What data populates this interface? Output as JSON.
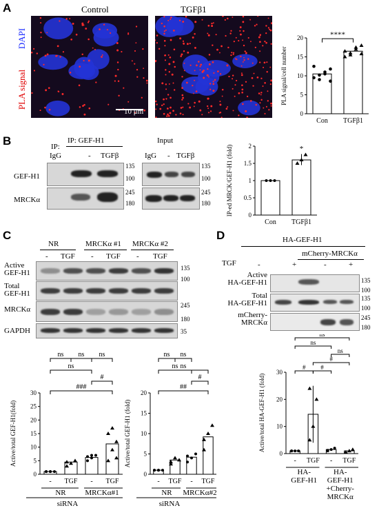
{
  "panelA": {
    "label": "A",
    "control_title": "Control",
    "tgf_title": "TGFβ1",
    "dapi_label": "DAPI",
    "pla_label": "PLA signal",
    "scale_bar": "10 μm",
    "chart": {
      "type": "bar",
      "categories": [
        "Con",
        "TGFβ1"
      ],
      "values": [
        10.5,
        16.5
      ],
      "ylabel": "PLA signal/cell number",
      "ylim": [
        0,
        20
      ],
      "yticks": [
        0,
        5,
        10,
        15,
        20
      ],
      "significance": "****"
    }
  },
  "panelB": {
    "label": "B",
    "ip_header": "IP: GEF-H1",
    "ip_prefix": "IP:",
    "input_header": "Input",
    "lanes_ip": [
      "IgG",
      "-",
      "TGFβ"
    ],
    "lanes_input": [
      "IgG",
      "-",
      "TGFβ"
    ],
    "rows": [
      "GEF-H1",
      "MRCKα"
    ],
    "mw_ip": [
      "135",
      "100",
      "245",
      "180"
    ],
    "mw_input": [
      "135",
      "100",
      "245",
      "180"
    ],
    "chart": {
      "type": "bar",
      "categories": [
        "Con",
        "TGFβ1"
      ],
      "values": [
        1.0,
        1.6
      ],
      "ylabel": "IP-ed MRCK/GEF-H1 (fold)",
      "ylim": [
        0,
        2
      ],
      "yticks": [
        0,
        0.5,
        1,
        1.5,
        2
      ],
      "significance": "*"
    }
  },
  "panelC": {
    "label": "C",
    "groups": [
      "NR",
      "MRCKα #1",
      "MRCKα #2"
    ],
    "lane_labels": [
      "-",
      "TGF",
      "-",
      "TGF",
      "-",
      "TGF"
    ],
    "rows": [
      "Active GEF-H1",
      "Total GEF-H1",
      "MRCKα",
      "GAPDH"
    ],
    "row_active_1": "Active",
    "row_active_2": "GEF-H1",
    "row_total_1": "Total",
    "row_total_2": "GEF-H1",
    "mw": [
      "135",
      "100",
      "245",
      "180",
      "35"
    ],
    "chart1": {
      "type": "bar",
      "categories": [
        "-",
        "TGF",
        "-",
        "TGF"
      ],
      "values": [
        1.0,
        4.5,
        6.2,
        11.2
      ],
      "ylabel": "Active/total GEF-H1(fold)",
      "ylim": [
        0,
        30
      ],
      "yticks": [
        0,
        5,
        10,
        15,
        20,
        25,
        30
      ],
      "group_labels": [
        "NR",
        "MRCKα#1"
      ],
      "xlabel": "siRNA",
      "sig": [
        "ns",
        "ns",
        "ns",
        "ns",
        "#",
        "###"
      ]
    },
    "chart2": {
      "type": "bar",
      "categories": [
        "-",
        "TGF",
        "-",
        "TGF"
      ],
      "values": [
        1.0,
        3.5,
        4.2,
        9.2
      ],
      "ylabel": "Active/total GEF-H1 (fold)",
      "ylim": [
        0,
        20
      ],
      "yticks": [
        0,
        5,
        10,
        15,
        20
      ],
      "group_labels": [
        "NR",
        "MRCKα#2"
      ],
      "xlabel": "siRNA",
      "sig": [
        "ns",
        "ns",
        "ns",
        "ns",
        "#",
        "##"
      ]
    }
  },
  "panelD": {
    "label": "D",
    "top_header": "HA-GEF-H1",
    "sub_header": "mCherry-MRCKα",
    "tgf_label": "TGF",
    "lane_signs": [
      "-",
      "+",
      "-",
      "+"
    ],
    "row_active_1": "Active",
    "row_active_2": "HA-GEF-H1",
    "row_total_1": "Total",
    "row_total_2": "HA-GEF-H1",
    "row_mch_1": "mCherry-",
    "row_mch_2": "MRCKα",
    "mw": [
      "135",
      "100",
      "135",
      "100",
      "245",
      "180"
    ],
    "chart": {
      "type": "bar",
      "categories": [
        "-",
        "TGF",
        "-",
        "TGF"
      ],
      "values": [
        1.0,
        14.5,
        1.5,
        1.0
      ],
      "ylabel": "Active/total HA-GEF-H1 (fold)",
      "ylim": [
        0,
        30
      ],
      "yticks": [
        0,
        10,
        20,
        30
      ],
      "group_label_1a": "HA-",
      "group_label_1b": "GEF-H1",
      "group_label_2a": "HA-",
      "group_label_2b": "GEF-H1",
      "group_label_2c": "+Cherry-",
      "group_label_2d": "MRCKα",
      "sig": [
        "ns",
        "ns",
        "ns",
        "#",
        "#",
        "#"
      ]
    }
  }
}
